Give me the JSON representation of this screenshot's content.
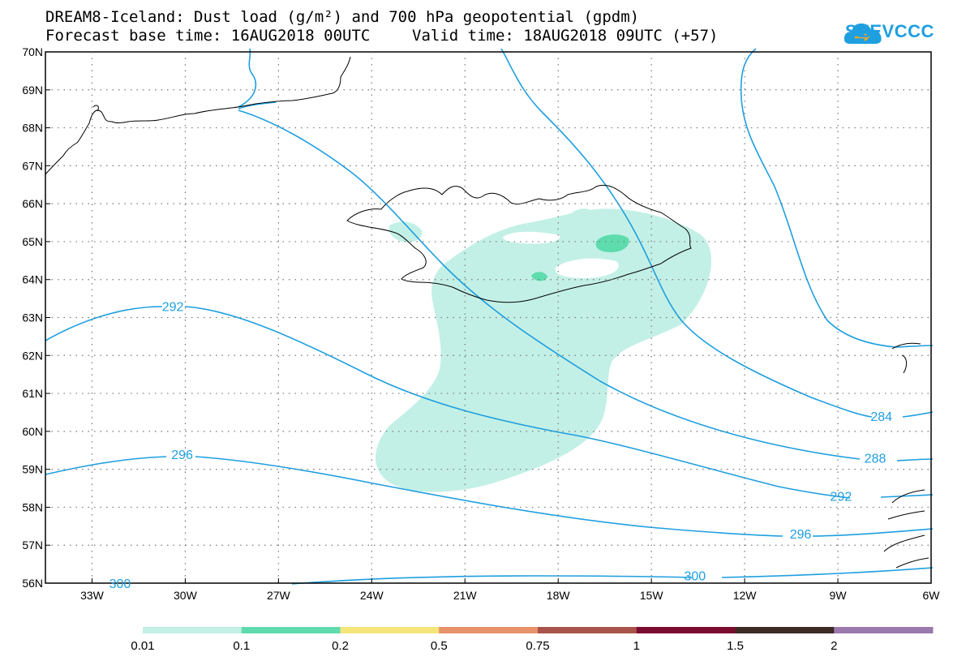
{
  "title": {
    "line1": "DREAM8-Iceland: Dust load (g/m²) and 700 hPa geopotential (gpdm)",
    "forecast_base": "Forecast base time: 16AUG2018 00UTC",
    "valid_time": "Valid time: 18AUG2018 09UTC (+57)"
  },
  "logo": {
    "text": "SEEVCCC",
    "icon": "cloud-logo-icon",
    "color": "#1e9fe0"
  },
  "map": {
    "lon_range": [
      -34.5,
      -6
    ],
    "lat_range": [
      56,
      70
    ],
    "lon_ticks": [
      {
        "value": -33,
        "label": "33W"
      },
      {
        "value": -30,
        "label": "30W"
      },
      {
        "value": -27,
        "label": "27W"
      },
      {
        "value": -24,
        "label": "24W"
      },
      {
        "value": -21,
        "label": "21W"
      },
      {
        "value": -18,
        "label": "18W"
      },
      {
        "value": -15,
        "label": "15W"
      },
      {
        "value": -12,
        "label": "12W"
      },
      {
        "value": -9,
        "label": "9W"
      },
      {
        "value": -6,
        "label": "6W"
      }
    ],
    "lat_ticks": [
      {
        "value": 56,
        "label": "56N"
      },
      {
        "value": 57,
        "label": "57N"
      },
      {
        "value": 58,
        "label": "58N"
      },
      {
        "value": 59,
        "label": "59N"
      },
      {
        "value": 60,
        "label": "60N"
      },
      {
        "value": 61,
        "label": "61N"
      },
      {
        "value": 62,
        "label": "62N"
      },
      {
        "value": 63,
        "label": "63N"
      },
      {
        "value": 64,
        "label": "64N"
      },
      {
        "value": 65,
        "label": "65N"
      },
      {
        "value": 66,
        "label": "66N"
      },
      {
        "value": 67,
        "label": "67N"
      },
      {
        "value": 68,
        "label": "68N"
      },
      {
        "value": 69,
        "label": "69N"
      },
      {
        "value": 70,
        "label": "70N"
      }
    ],
    "contour_color": "#1e9fe0",
    "contour_labels": [
      {
        "label": "292",
        "lon": -30.4,
        "lat": 63.3
      },
      {
        "label": "296",
        "lon": -30.1,
        "lat": 59.4
      },
      {
        "label": "300",
        "lon": -32.1,
        "lat": 56.0
      },
      {
        "label": "284",
        "lon": -7.6,
        "lat": 60.4
      },
      {
        "label": "288",
        "lon": -7.8,
        "lat": 59.3
      },
      {
        "label": "292",
        "lon": -8.9,
        "lat": 58.3
      },
      {
        "label": "296",
        "lon": -10.2,
        "lat": 57.3
      },
      {
        "label": "300",
        "lon": -13.6,
        "lat": 56.2
      }
    ],
    "dust_colors": {
      "light": "#c3f0e6",
      "medium": "#5edcae"
    }
  },
  "colorbar": {
    "segments": [
      {
        "color": "#c3f0e6"
      },
      {
        "color": "#5edcae"
      },
      {
        "color": "#f5e57a"
      },
      {
        "color": "#e8926a"
      },
      {
        "color": "#a8544a"
      },
      {
        "color": "#7a0c30"
      },
      {
        "color": "#3c2a25"
      },
      {
        "color": "#9b78ad"
      }
    ],
    "labels": [
      "0.01",
      "0.1",
      "0.2",
      "0.5",
      "0.75",
      "1",
      "1.5",
      "2"
    ]
  }
}
